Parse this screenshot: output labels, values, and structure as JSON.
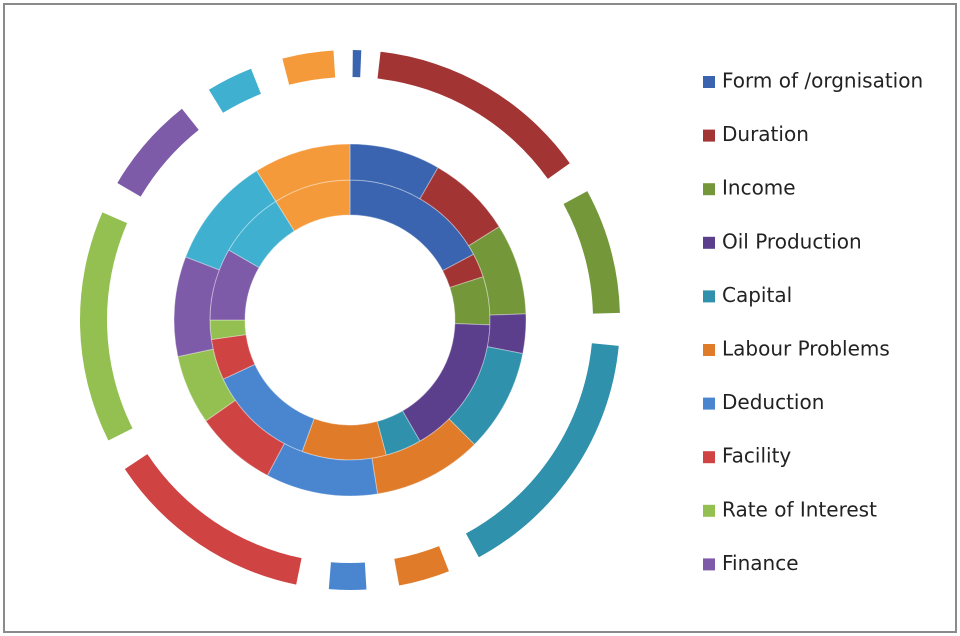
{
  "chart_data": {
    "type": "doughnut",
    "categories": [
      "Form of /orgnisation",
      "Duration",
      "Income",
      "Oil Production",
      "Capital",
      "Labour Problems",
      "Deduction",
      "Facility",
      "Rate of Interest",
      "Finance",
      null,
      null
    ],
    "colors": [
      "#3a64b0",
      "#a33434",
      "#74973a",
      "#5c3f8c",
      "#2f91ab",
      "#e07b2a",
      "#4a86d0",
      "#d04343",
      "#94c052",
      "#7e5ba8",
      "#3fb0d0",
      "#f59a3b"
    ],
    "series": [
      {
        "values": [
          62,
          10,
          20,
          58,
          15,
          35,
          45,
          17,
          8,
          30,
          28,
          32
        ]
      },
      {
        "values": [
          30,
          28,
          30,
          13,
          34,
          36,
          37,
          27,
          23,
          33,
          37,
          32
        ]
      },
      {
        "values": [
          3,
          55,
          34,
          0,
          63,
          18,
          15,
          52,
          57,
          28,
          17,
          18
        ]
      }
    ],
    "legend": "right"
  }
}
